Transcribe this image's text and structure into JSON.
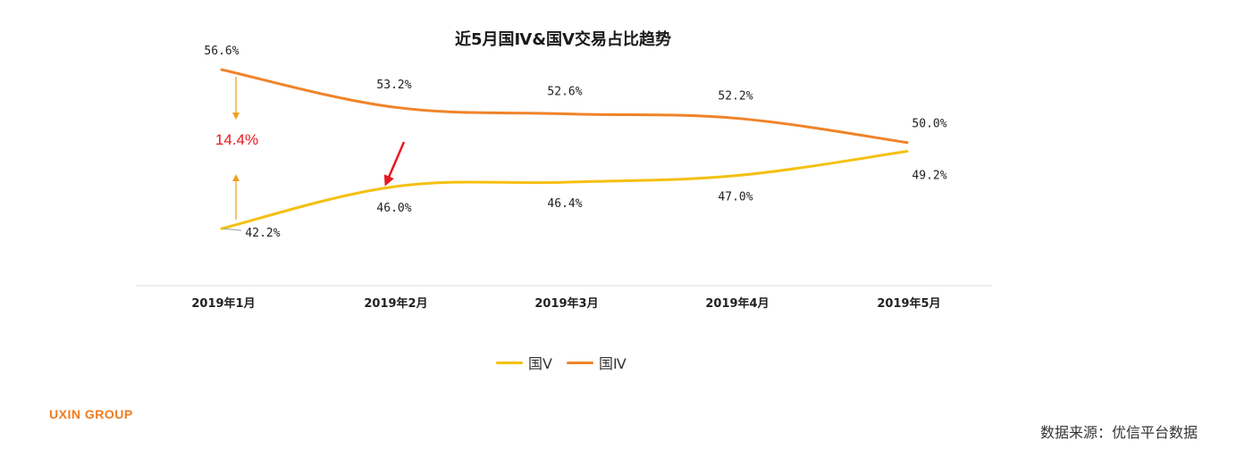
{
  "chart_data": {
    "type": "line",
    "title": "近5月国Ⅳ&国Ⅴ交易占比趋势",
    "categories": [
      "2019年1月",
      "2019年2月",
      "2019年3月",
      "2019年4月",
      "2019年5月"
    ],
    "series": [
      {
        "name": "国Ⅴ",
        "values": [
          42.2,
          46.0,
          46.4,
          47.0,
          49.2
        ],
        "labels": [
          "42.2%",
          "46.0%",
          "46.4%",
          "47.0%",
          "49.2%"
        ],
        "color": "#F5C00F"
      },
      {
        "name": "国Ⅳ",
        "values": [
          56.6,
          53.2,
          52.6,
          52.2,
          50.0
        ],
        "labels": [
          "56.6%",
          "53.2%",
          "52.6%",
          "52.2%",
          "50.0%"
        ],
        "color": "#F08328"
      }
    ],
    "xlabel": "",
    "ylabel": "",
    "ylim": [
      38,
      60
    ],
    "grid": false,
    "legend": "bottom-center",
    "annotations": {
      "gap_label": "14.4%",
      "gap_color": "#E8191E",
      "gap_arrow_color": "#F0A020",
      "highlight_arrow_color": "#E8191E"
    }
  },
  "brand": "UXIN GROUP",
  "source": "数据来源：优信平台数据"
}
